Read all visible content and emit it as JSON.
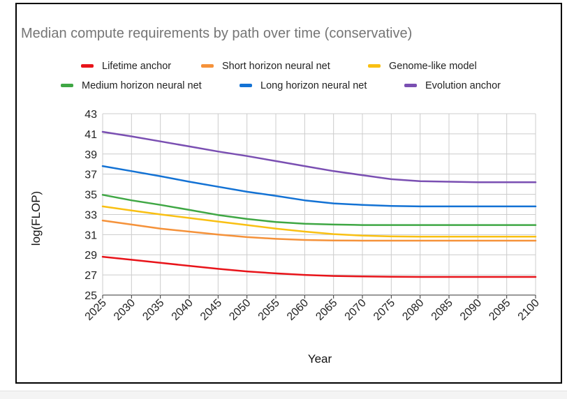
{
  "chart_data": {
    "type": "line",
    "title": "Median compute requirements by path over time (conservative)",
    "xlabel": "Year",
    "ylabel": "log(FLOP)",
    "xlim": [
      2025,
      2100
    ],
    "ylim": [
      25,
      43
    ],
    "x_ticks": [
      2025,
      2030,
      2035,
      2040,
      2045,
      2050,
      2055,
      2060,
      2065,
      2070,
      2075,
      2080,
      2085,
      2090,
      2095,
      2100
    ],
    "y_ticks": [
      25,
      27,
      29,
      31,
      33,
      35,
      37,
      39,
      41,
      43
    ],
    "grid": true,
    "legend_position": "top",
    "x": [
      2025,
      2030,
      2035,
      2040,
      2045,
      2050,
      2055,
      2060,
      2065,
      2070,
      2075,
      2080,
      2085,
      2090,
      2095,
      2100
    ],
    "series": [
      {
        "name": "Lifetime anchor",
        "color": "#e8141a",
        "values": [
          28.8,
          28.5,
          28.2,
          27.9,
          27.6,
          27.35,
          27.15,
          27.0,
          26.9,
          26.85,
          26.82,
          26.8,
          26.8,
          26.8,
          26.8,
          26.8
        ]
      },
      {
        "name": "Short horizon neural net",
        "color": "#f5923a",
        "values": [
          32.4,
          32.0,
          31.6,
          31.3,
          31.0,
          30.75,
          30.58,
          30.47,
          30.42,
          30.4,
          30.4,
          30.4,
          30.4,
          30.4,
          30.4,
          30.4
        ]
      },
      {
        "name": "Genome-like model",
        "color": "#f9c013",
        "values": [
          33.8,
          33.4,
          33.0,
          32.65,
          32.3,
          31.95,
          31.6,
          31.3,
          31.05,
          30.9,
          30.82,
          30.8,
          30.8,
          30.8,
          30.8,
          30.8
        ]
      },
      {
        "name": "Medium horizon neural net",
        "color": "#3fa744",
        "values": [
          34.95,
          34.4,
          33.95,
          33.45,
          32.95,
          32.55,
          32.25,
          32.08,
          32.0,
          31.95,
          31.95,
          31.95,
          31.95,
          31.95,
          31.95,
          31.95
        ]
      },
      {
        "name": "Long horizon neural net",
        "color": "#1372d4",
        "values": [
          37.8,
          37.3,
          36.8,
          36.25,
          35.75,
          35.25,
          34.85,
          34.4,
          34.1,
          33.95,
          33.85,
          33.8,
          33.8,
          33.8,
          33.8,
          33.8
        ]
      },
      {
        "name": "Evolution anchor",
        "color": "#7a4fb2",
        "values": [
          41.2,
          40.75,
          40.25,
          39.75,
          39.25,
          38.8,
          38.3,
          37.8,
          37.3,
          36.9,
          36.5,
          36.3,
          36.25,
          36.2,
          36.2,
          36.2
        ]
      }
    ]
  }
}
